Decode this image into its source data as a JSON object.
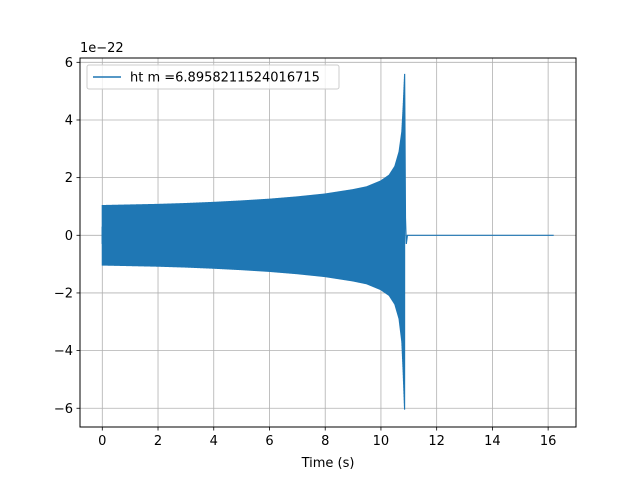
{
  "chart_data": {
    "type": "line",
    "xlabel": "Time (s)",
    "ylabel": "",
    "y_scale_label": "1e−22",
    "y_multiplier": 1e-22,
    "xlim": [
      -0.8,
      17.0
    ],
    "ylim": [
      -6.65,
      6.15
    ],
    "xticks": [
      0,
      2,
      4,
      6,
      8,
      10,
      12,
      14,
      16
    ],
    "xtick_labels": [
      "0",
      "2",
      "4",
      "6",
      "8",
      "10",
      "12",
      "14",
      "16"
    ],
    "yticks": [
      -6,
      -4,
      -2,
      0,
      2,
      4,
      6
    ],
    "ytick_labels": [
      "−6",
      "−4",
      "−2",
      "0",
      "2",
      "4",
      "6"
    ],
    "grid": true,
    "legend_position": "top-left",
    "series": [
      {
        "name": "ht m =6.8958211524016715",
        "color": "#1f77b4",
        "signal_start": 0.0,
        "merger_time": 10.85,
        "signal_end": 16.2,
        "envelope": {
          "t": [
            0.0,
            1.0,
            2.0,
            3.0,
            4.0,
            5.0,
            6.0,
            7.0,
            8.0,
            9.0,
            9.5,
            10.0,
            10.3,
            10.5,
            10.65,
            10.75,
            10.8,
            10.85
          ],
          "upper": [
            1.05,
            1.07,
            1.09,
            1.12,
            1.16,
            1.21,
            1.27,
            1.35,
            1.45,
            1.6,
            1.7,
            1.9,
            2.1,
            2.4,
            2.9,
            3.6,
            4.5,
            5.6
          ],
          "lower": [
            -1.05,
            -1.07,
            -1.09,
            -1.12,
            -1.16,
            -1.21,
            -1.27,
            -1.35,
            -1.45,
            -1.6,
            -1.7,
            -1.9,
            -2.1,
            -2.4,
            -2.9,
            -3.7,
            -4.8,
            -6.1
          ]
        }
      }
    ]
  }
}
